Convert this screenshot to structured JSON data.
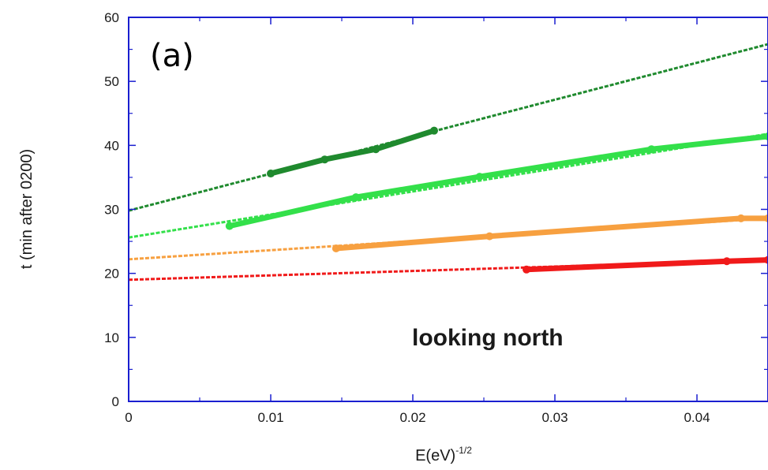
{
  "chart_data": {
    "type": "line",
    "title": "",
    "panel_label": "(a)",
    "annotation": "looking north",
    "xlabel": "E(eV)",
    "xlabel_exponent": "-1/2",
    "ylabel": "t (min after 0200)",
    "xlim": [
      0,
      0.045
    ],
    "ylim": [
      0,
      60
    ],
    "x_ticks": [
      0,
      0.01,
      0.02,
      0.03,
      0.04
    ],
    "x_tick_labels": [
      "0",
      "0.01",
      "0.02",
      "0.03",
      "0.04"
    ],
    "y_ticks": [
      0,
      10,
      20,
      30,
      40,
      50,
      60
    ],
    "y_tick_labels": [
      "0",
      "10",
      "20",
      "30",
      "40",
      "50",
      "60"
    ],
    "grid": false,
    "series": [
      {
        "color": "#1f8a2e",
        "fit_line": {
          "x": [
            0,
            0.045
          ],
          "y": [
            29.8,
            55.8
          ]
        },
        "data_segment": {
          "x": [
            0.01,
            0.0138,
            0.0174,
            0.0215
          ],
          "y": [
            35.6,
            37.8,
            39.4,
            42.3
          ]
        }
      },
      {
        "color": "#33e04a",
        "fit_line": {
          "x": [
            0,
            0.045
          ],
          "y": [
            25.6,
            41.8
          ]
        },
        "data_segment": {
          "x": [
            0.0071,
            0.016,
            0.0247,
            0.0368,
            0.045
          ],
          "y": [
            27.4,
            31.9,
            35.1,
            39.4,
            41.4
          ]
        }
      },
      {
        "color": "#f7a040",
        "fit_line": {
          "x": [
            0,
            0.045
          ],
          "y": [
            22.2,
            28.6
          ]
        },
        "data_segment": {
          "x": [
            0.0146,
            0.0254,
            0.0431,
            0.045
          ],
          "y": [
            23.9,
            25.8,
            28.6,
            28.6
          ]
        }
      },
      {
        "color": "#f01a1a",
        "fit_line": {
          "x": [
            0,
            0.045
          ],
          "y": [
            19.0,
            22.1
          ]
        },
        "data_segment": {
          "x": [
            0.028,
            0.0421,
            0.045
          ],
          "y": [
            20.6,
            21.9,
            22.1
          ]
        }
      }
    ]
  }
}
